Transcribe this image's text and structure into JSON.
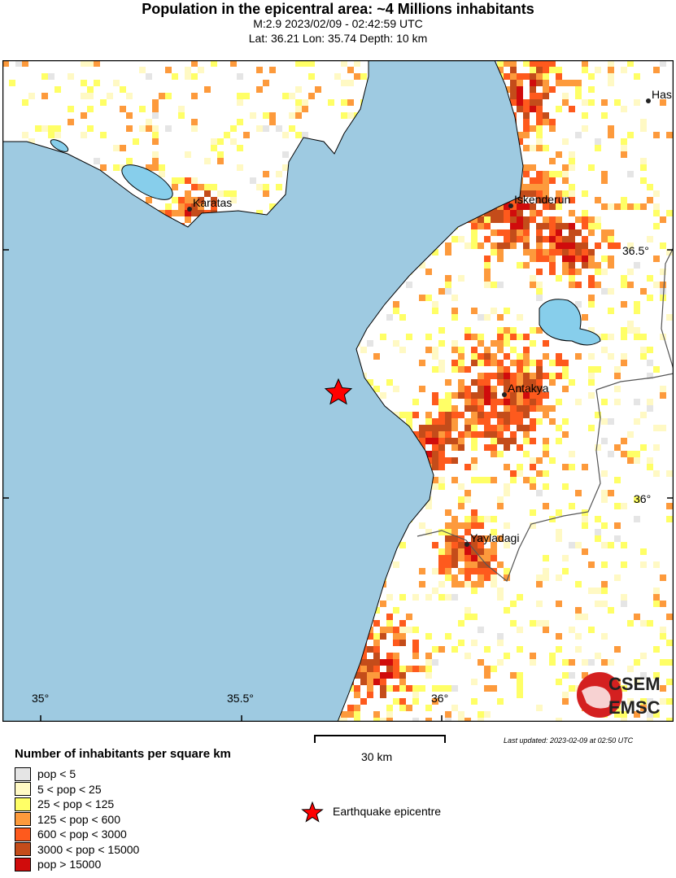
{
  "header": {
    "title": "Population in the epicentral area: ~4 Millions inhabitants",
    "event": "M:2.9 2023/02/09 - 02:42:59 UTC",
    "location": "Lat: 36.21 Lon: 35.74 Depth: 10 km"
  },
  "map": {
    "colors": {
      "sea": "#9ecae1",
      "lake": "#87ceeb",
      "land": "#ffffff",
      "epicentre": "#ff0000"
    },
    "cities": [
      {
        "name": "Karatas"
      },
      {
        "name": "Iskenderun"
      },
      {
        "name": "Antakya"
      },
      {
        "name": "Yayladagi"
      },
      {
        "name": "Has"
      }
    ],
    "lon_ticks": [
      "35°",
      "35.5°",
      "36°"
    ],
    "lat_ticks": [
      "36.5°",
      "36°"
    ],
    "logo": {
      "top": "CSEM",
      "bottom": "EMSC"
    }
  },
  "legend": {
    "title": "Number of inhabitants per square km",
    "items": [
      {
        "label": "pop < 5",
        "color": "#e5e5e5"
      },
      {
        "label": "5 < pop < 25",
        "color": "#fff9c4"
      },
      {
        "label": "25 < pop < 125",
        "color": "#ffff66"
      },
      {
        "label": "125 < pop < 600",
        "color": "#fd9a3c"
      },
      {
        "label": "600 < pop < 3000",
        "color": "#fe5a1d"
      },
      {
        "label": "3000 < pop < 15000",
        "color": "#c44c1a"
      },
      {
        "label": "pop > 15000",
        "color": "#d00c0c"
      }
    ],
    "epicentre_label": "Earthquake epicentre"
  },
  "scale_bar": {
    "label": "30 km"
  },
  "last_updated": "Last updated: 2023-02-09 at 02:50 UTC"
}
